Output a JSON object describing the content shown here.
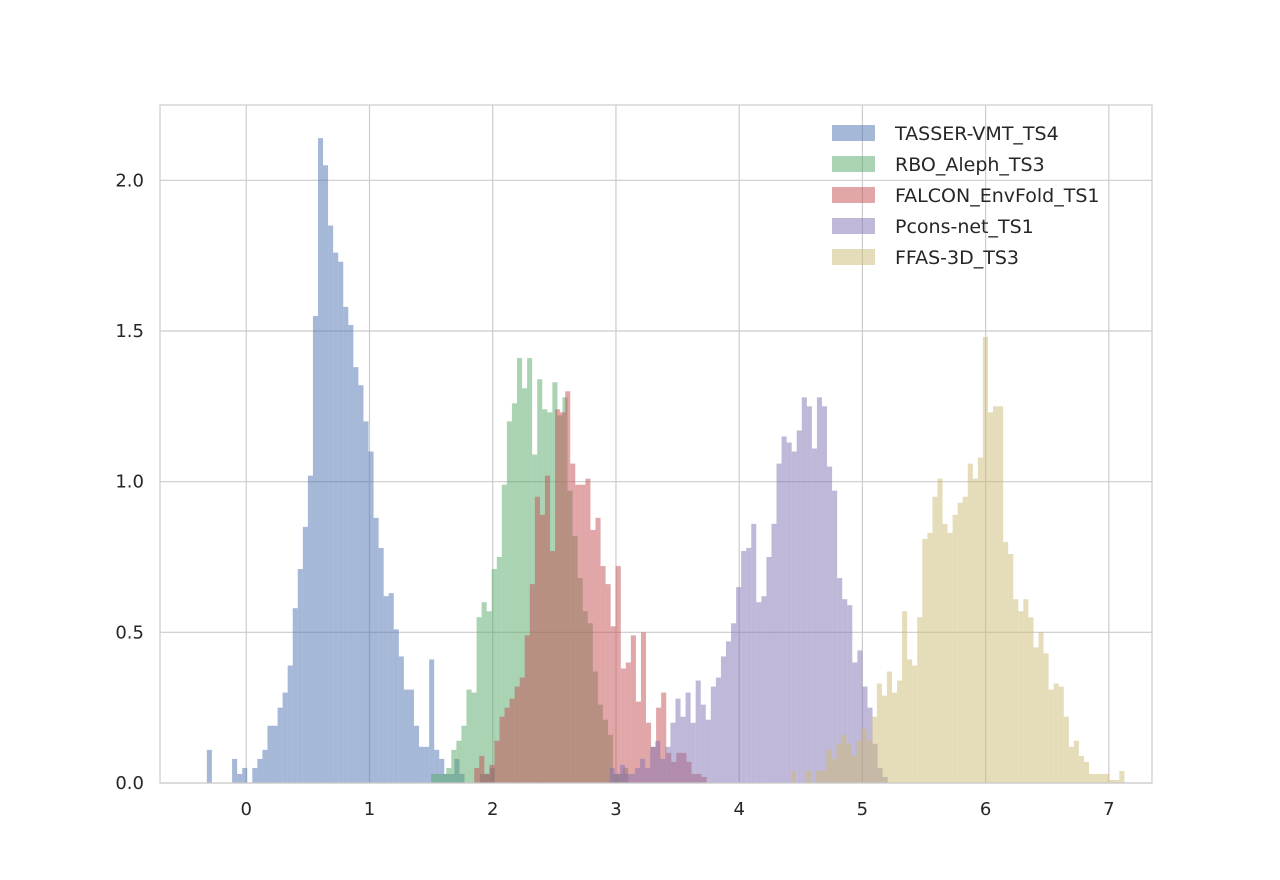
{
  "chart_data": {
    "type": "histogram",
    "title": "",
    "xlabel": "",
    "ylabel": "",
    "xlim": [
      -0.7,
      7.35
    ],
    "ylim": [
      0,
      2.25
    ],
    "xticks": [
      "0",
      "1",
      "2",
      "3",
      "4",
      "5",
      "6",
      "7"
    ],
    "yticks": [
      "0.0",
      "0.5",
      "1.0",
      "1.5",
      "2.0"
    ],
    "grid": true,
    "legend_position": "top-right",
    "bin_width": 0.041,
    "series": [
      {
        "name": "TASSER-VMT_TS4",
        "color": "#4c72b0",
        "bin_start": -0.32,
        "heights": [
          0.11,
          0,
          0,
          0,
          0,
          0.08,
          0.03,
          0.05,
          0,
          0.05,
          0.08,
          0.11,
          0.19,
          0.19,
          0.25,
          0.3,
          0.39,
          0.58,
          0.71,
          0.85,
          1.02,
          1.55,
          2.14,
          2.05,
          1.85,
          1.76,
          1.73,
          1.58,
          1.52,
          1.38,
          1.32,
          1.2,
          1.1,
          0.88,
          0.78,
          0.62,
          0.63,
          0.51,
          0.42,
          0.31,
          0.31,
          0.19,
          0.12,
          0.12,
          0.41,
          0.11,
          0.08,
          0.03,
          0.03,
          0.08,
          0.03,
          0,
          0,
          0,
          0.03,
          0.03,
          0.05
        ]
      },
      {
        "name": "RBO_Aleph_TS3",
        "color": "#55a868",
        "bin_start": 1.5,
        "heights": [
          0.03,
          0.03,
          0.03,
          0.05,
          0.11,
          0.14,
          0.19,
          0.31,
          0.3,
          0.55,
          0.6,
          0.57,
          0.71,
          0.75,
          0.99,
          1.2,
          1.26,
          1.41,
          1.31,
          1.41,
          1.09,
          1.34,
          1.24,
          1.23,
          1.33,
          1.22,
          1.28,
          0.97,
          0.82,
          0.68,
          0.57,
          0.53,
          0.37,
          0.26,
          0.21,
          0.16,
          0.03,
          0.03,
          0.05
        ]
      },
      {
        "name": "FALCON_EnvFold_TS1",
        "color": "#c44e52",
        "bin_start": 1.85,
        "heights": [
          0.05,
          0.09,
          0.03,
          0.06,
          0.14,
          0.22,
          0.25,
          0.28,
          0.32,
          0.35,
          0.49,
          0.66,
          0.95,
          0.89,
          1.02,
          0.77,
          1.24,
          1.23,
          1.3,
          1.06,
          0.99,
          0.99,
          1.01,
          0.84,
          0.88,
          0.72,
          0.66,
          0.52,
          0.72,
          0.38,
          0.4,
          0.49,
          0.27,
          0.5,
          0.2,
          0.12,
          0.25,
          0.3,
          0.1,
          0.07,
          0.1,
          0.1,
          0.07,
          0.03,
          0.03,
          0.02
        ]
      },
      {
        "name": "Pcons-net_TS1",
        "color": "#8172b2",
        "bin_start": 2.95,
        "heights": [
          0.05,
          0.03,
          0.06,
          0.03,
          0.03,
          0.05,
          0.08,
          0.05,
          0.12,
          0.14,
          0.08,
          0.12,
          0.2,
          0.28,
          0.22,
          0.3,
          0.2,
          0.34,
          0.26,
          0.21,
          0.32,
          0.35,
          0.42,
          0.47,
          0.53,
          0.65,
          0.77,
          0.78,
          0.86,
          0.6,
          0.62,
          0.75,
          0.86,
          1.06,
          1.15,
          1.13,
          1.1,
          1.17,
          1.28,
          1.25,
          1.11,
          1.28,
          1.25,
          1.05,
          0.97,
          0.68,
          0.61,
          0.59,
          0.4,
          0.44,
          0.32,
          0.25,
          0.13,
          0.05,
          0.02
        ]
      },
      {
        "name": "FFAS-3D_TS3",
        "color": "#ccb974",
        "bin_start": 4.42,
        "heights": [
          0.04,
          0,
          0,
          0.04,
          0,
          0.04,
          0.04,
          0.11,
          0.08,
          0.13,
          0.16,
          0.13,
          0.09,
          0.14,
          0.18,
          0.14,
          0.22,
          0.33,
          0.29,
          0.37,
          0.3,
          0.34,
          0.57,
          0.41,
          0.39,
          0.55,
          0.81,
          0.83,
          0.95,
          1.01,
          0.86,
          0.83,
          0.89,
          0.93,
          0.95,
          1.06,
          1.01,
          1.08,
          1.48,
          1.23,
          1.25,
          1.25,
          0.8,
          0.76,
          0.61,
          0.57,
          0.61,
          0.55,
          0.45,
          0.5,
          0.43,
          0.31,
          0.33,
          0.32,
          0.22,
          0.12,
          0.14,
          0.09,
          0.07,
          0.03,
          0.03,
          0.03,
          0.03,
          0.01,
          0.01,
          0.04
        ]
      }
    ]
  }
}
